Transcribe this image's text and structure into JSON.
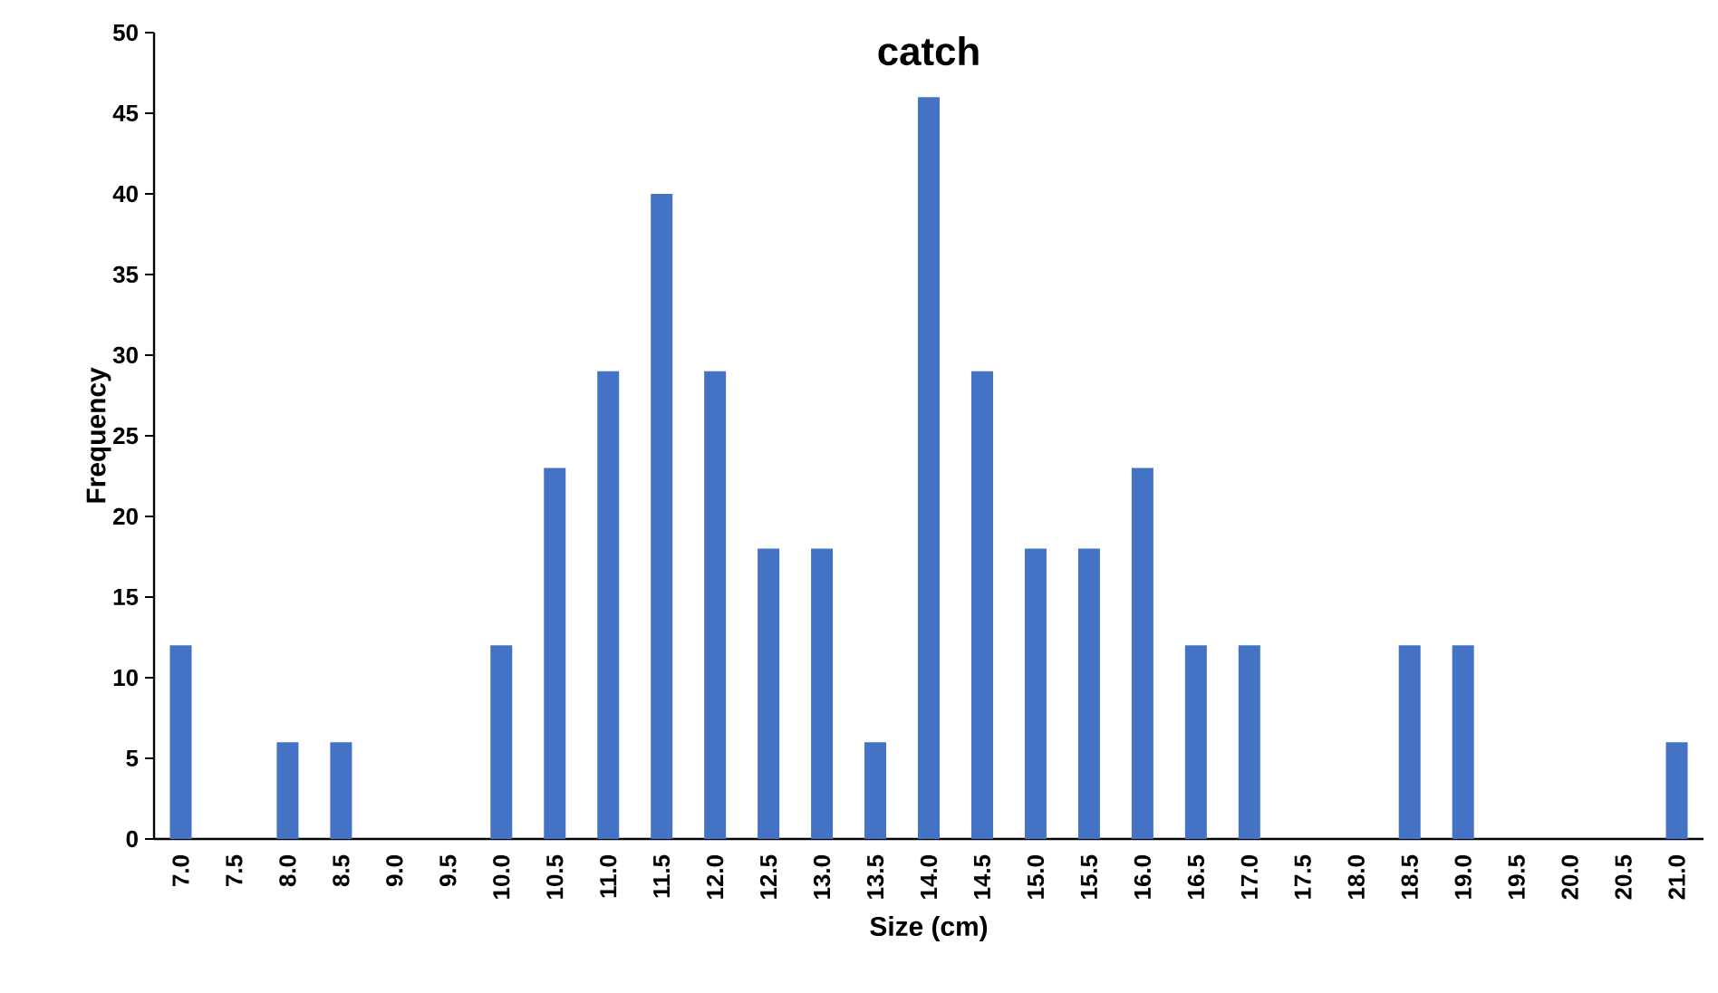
{
  "chart_data": {
    "type": "bar",
    "title": "catch",
    "xlabel": "Size (cm)",
    "ylabel": "Frequency",
    "categories": [
      "7.0",
      "7.5",
      "8.0",
      "8.5",
      "9.0",
      "9.5",
      "10.0",
      "10.5",
      "11.0",
      "11.5",
      "12.0",
      "12.5",
      "13.0",
      "13.5",
      "14.0",
      "14.5",
      "15.0",
      "15.5",
      "16.0",
      "16.5",
      "17.0",
      "17.5",
      "18.0",
      "18.5",
      "19.0",
      "19.5",
      "20.0",
      "20.5",
      "21.0"
    ],
    "values": [
      12,
      0,
      6,
      6,
      0,
      0,
      12,
      23,
      29,
      40,
      29,
      18,
      18,
      6,
      46,
      29,
      18,
      18,
      23,
      12,
      12,
      0,
      0,
      12,
      12,
      0,
      0,
      0,
      6
    ],
    "color": "#4472c4",
    "ylim": [
      0,
      50
    ],
    "yticks": [
      0,
      5,
      10,
      15,
      20,
      25,
      30,
      35,
      40,
      45,
      50
    ]
  }
}
